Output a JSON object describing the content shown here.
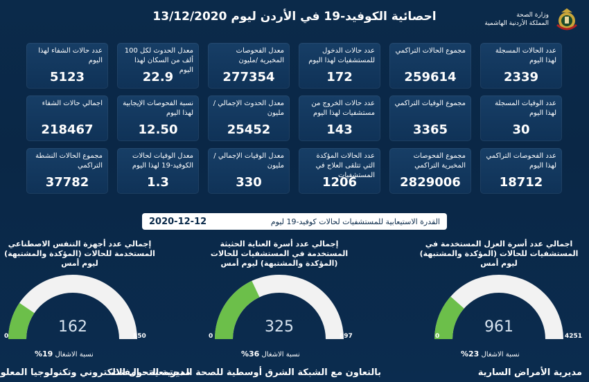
{
  "header": {
    "title": "احصائية الكوفيد-19 في الأردن ليوم  13/12/2020",
    "ministry_line1": "وزارة الصحة",
    "ministry_line2": "المملكة الأردنية الهاشمية",
    "logo_icon": "jordan-crest-icon"
  },
  "cards": [
    {
      "label": "عدد الحالات المسجلة لهذا اليوم",
      "value": "2339"
    },
    {
      "label": "مجموع الحالات التراكمي",
      "value": "259614"
    },
    {
      "label": "عدد حالات الدخول للمستشفيات لهذا اليوم",
      "value": "172"
    },
    {
      "label": "معدل الفحوصات المخبرية /مليون",
      "value": "277354"
    },
    {
      "label": "معدل الحدوث لكل 100 ألف من السكان لهذا اليوم",
      "value": "22.9"
    },
    {
      "label": "عدد حالات الشفاء لهذا اليوم",
      "value": "5123"
    },
    {
      "label": "عدد الوفيات المسجلة لهذا اليوم",
      "value": "30"
    },
    {
      "label": "مجموع الوفيات التراكمي",
      "value": "3365"
    },
    {
      "label": "عدد حالات الخروج من مستشفيات لهذا اليوم",
      "value": "143"
    },
    {
      "label": "معدل الحدوث الإجمالي /مليون",
      "value": "25452"
    },
    {
      "label": "نسبة الفحوصات الإيجابية لهذا اليوم",
      "value": "12.50"
    },
    {
      "label": "اجمالي حالات الشفاء",
      "value": "218467"
    },
    {
      "label": "عدد الفحوصات التراكمي لهذا اليوم",
      "value": "18712"
    },
    {
      "label": "مجموع الفحوصات المخبرية التراكمي",
      "value": "2829006"
    },
    {
      "label": "عدد الحالات المؤكدة التي تتلقى العلاج في المستشفيات",
      "value": "1206"
    },
    {
      "label": "معدل الوفيات الإجمالي /مليون",
      "value": "330"
    },
    {
      "label": "معدل الوفيات لحالات الكوفيد-19 لهذا اليوم",
      "value": "1.3"
    },
    {
      "label": "مجموع الحالات النشطة التراكمي",
      "value": "37782"
    }
  ],
  "capacity": {
    "label": "القدرة الاستيعابية للمستشفيات لحالات كوفيد-19 ليوم",
    "date": "2020-12-12"
  },
  "gauges": [
    {
      "title": "اجمالي عدد أسرة العزل المستخدمة في المستشفيات للحالات (المؤكدة والمشتبهة) ليوم أمس",
      "value": "961",
      "min": "0",
      "max": "4251",
      "fraction": 0.23,
      "occ_label": "نسبة الاشغال",
      "occ_value": "23%",
      "footer": "مديرية الأمراض السارية"
    },
    {
      "title": "إجمالي عدد أسرة العناية الحثيثة المستخدمة في المستشفيات للحالات (المؤكدة والمشتبهة) ليوم أمس",
      "value": "325",
      "min": "0",
      "max": "897",
      "fraction": 0.36,
      "occ_label": "نسبة الاشغال",
      "occ_value": "36%",
      "footer": "بالتعاون مع الشبكة الشرق أوسطية للصحة المجتمعية - إمفنت"
    },
    {
      "title": "إجمالي عدد أجهزة التنفس الاصطناعي المستخدمة للحالات (المؤكدة والمشتبهة) ليوم أمس",
      "value": "162",
      "min": "0",
      "max": "850",
      "fraction": 0.19,
      "occ_label": "نسبة الاشغال",
      "occ_value": "19%",
      "footer": "مديرية التحول الالكتروني وتكنولوجيا المعلومات"
    }
  ],
  "colors": {
    "gauge_fill": "#6cbf4a",
    "gauge_track": "#f2f2f2",
    "card_bg": "#153a61",
    "page_bg": "#0b2a4a"
  }
}
